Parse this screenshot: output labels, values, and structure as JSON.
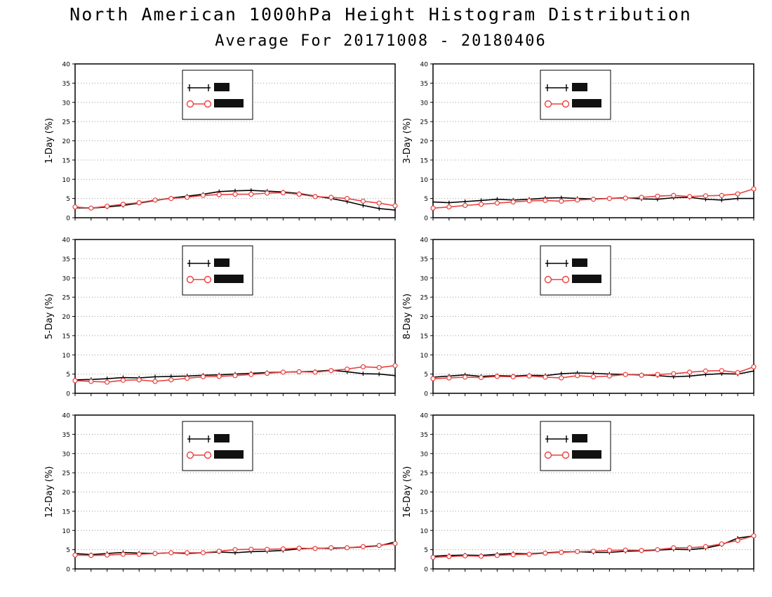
{
  "title": "North American 1000hPa Height Histogram Distribution",
  "subtitle": "Average For 20171008 - 20180406",
  "colors": {
    "series1": "#000000",
    "series2": "#e8413f",
    "grid": "#9a9a9a"
  },
  "chart_data": [
    {
      "type": "line",
      "ylabel": "1-Day (%)",
      "ylim": [
        0,
        40
      ],
      "yticks": [
        0,
        5,
        10,
        15,
        20,
        25,
        30,
        35,
        40
      ],
      "grid": true,
      "legend_position": "top-center",
      "x": [
        1,
        2,
        3,
        4,
        5,
        6,
        7,
        8,
        9,
        10,
        11,
        12,
        13,
        14,
        15,
        16,
        17,
        18,
        19,
        20,
        21
      ],
      "series": [
        {
          "values": [
            2.6,
            2.5,
            2.8,
            3.2,
            3.8,
            4.5,
            5.1,
            5.6,
            6.1,
            6.8,
            7.0,
            7.1,
            6.9,
            6.7,
            6.3,
            5.6,
            5.0,
            4.2,
            3.2,
            2.4,
            2.0
          ]
        },
        {
          "values": [
            2.8,
            2.5,
            3.0,
            3.5,
            3.9,
            4.6,
            5.0,
            5.3,
            5.8,
            6.0,
            6.1,
            6.1,
            6.4,
            6.5,
            6.1,
            5.5,
            5.3,
            5.0,
            4.3,
            3.8,
            3.1
          ]
        }
      ]
    },
    {
      "type": "line",
      "ylabel": "3-Day (%)",
      "ylim": [
        0,
        40
      ],
      "yticks": [
        0,
        5,
        10,
        15,
        20,
        25,
        30,
        35,
        40
      ],
      "grid": true,
      "legend_position": "top-center",
      "x": [
        1,
        2,
        3,
        4,
        5,
        6,
        7,
        8,
        9,
        10,
        11,
        12,
        13,
        14,
        15,
        16,
        17,
        18,
        19,
        20,
        21
      ],
      "series": [
        {
          "values": [
            4.1,
            3.9,
            4.2,
            4.5,
            4.8,
            4.6,
            4.8,
            5.1,
            5.2,
            5.0,
            4.9,
            5.0,
            5.2,
            4.9,
            4.8,
            5.2,
            5.3,
            4.8,
            4.6,
            5.0,
            5.0
          ]
        },
        {
          "values": [
            2.5,
            2.8,
            3.2,
            3.5,
            3.8,
            4.1,
            4.4,
            4.5,
            4.3,
            4.6,
            4.8,
            5.0,
            5.1,
            5.3,
            5.6,
            5.8,
            5.5,
            5.7,
            5.8,
            6.2,
            7.5
          ]
        }
      ]
    },
    {
      "type": "line",
      "ylabel": "5-Day (%)",
      "ylim": [
        0,
        40
      ],
      "yticks": [
        0,
        5,
        10,
        15,
        20,
        25,
        30,
        35,
        40
      ],
      "grid": true,
      "legend_position": "top-center",
      "x": [
        1,
        2,
        3,
        4,
        5,
        6,
        7,
        8,
        9,
        10,
        11,
        12,
        13,
        14,
        15,
        16,
        17,
        18,
        19,
        20,
        21
      ],
      "series": [
        {
          "values": [
            3.5,
            3.6,
            3.8,
            4.1,
            4.0,
            4.3,
            4.4,
            4.5,
            4.7,
            4.8,
            5.0,
            5.2,
            5.4,
            5.5,
            5.6,
            5.7,
            6.0,
            5.6,
            5.1,
            5.0,
            4.6
          ]
        },
        {
          "values": [
            3.3,
            3.1,
            2.9,
            3.4,
            3.5,
            3.1,
            3.5,
            3.9,
            4.3,
            4.4,
            4.6,
            4.9,
            5.2,
            5.5,
            5.6,
            5.5,
            5.9,
            6.3,
            6.9,
            6.7,
            7.2
          ]
        }
      ]
    },
    {
      "type": "line",
      "ylabel": "8-Day (%)",
      "ylim": [
        0,
        40
      ],
      "yticks": [
        0,
        5,
        10,
        15,
        20,
        25,
        30,
        35,
        40
      ],
      "grid": true,
      "legend_position": "top-center",
      "x": [
        1,
        2,
        3,
        4,
        5,
        6,
        7,
        8,
        9,
        10,
        11,
        12,
        13,
        14,
        15,
        16,
        17,
        18,
        19,
        20,
        21
      ],
      "series": [
        {
          "values": [
            4.2,
            4.5,
            4.8,
            4.4,
            4.6,
            4.5,
            4.7,
            4.6,
            5.1,
            5.3,
            5.2,
            5.0,
            4.9,
            4.8,
            4.6,
            4.3,
            4.5,
            4.9,
            5.1,
            5.0,
            5.8
          ]
        },
        {
          "values": [
            3.8,
            4.0,
            4.2,
            4.1,
            4.4,
            4.3,
            4.5,
            4.2,
            4.0,
            4.6,
            4.3,
            4.5,
            4.9,
            4.7,
            4.9,
            5.1,
            5.5,
            5.8,
            5.9,
            5.4,
            6.9
          ]
        }
      ]
    },
    {
      "type": "line",
      "ylabel": "12-Day (%)",
      "ylim": [
        0,
        40
      ],
      "yticks": [
        0,
        5,
        10,
        15,
        20,
        25,
        30,
        35,
        40
      ],
      "grid": true,
      "legend_position": "top-center",
      "x": [
        1,
        2,
        3,
        4,
        5,
        6,
        7,
        8,
        9,
        10,
        11,
        12,
        13,
        14,
        15,
        16,
        17,
        18,
        19,
        20,
        21
      ],
      "series": [
        {
          "values": [
            4.0,
            3.7,
            4.0,
            4.3,
            4.1,
            4.0,
            4.2,
            4.0,
            4.2,
            4.4,
            4.2,
            4.5,
            4.6,
            4.8,
            5.2,
            5.4,
            5.3,
            5.5,
            5.7,
            6.0,
            7.0
          ]
        },
        {
          "values": [
            3.6,
            3.5,
            3.6,
            3.8,
            3.8,
            4.0,
            4.2,
            4.2,
            4.2,
            4.6,
            5.0,
            5.1,
            5.1,
            5.2,
            5.4,
            5.3,
            5.5,
            5.5,
            5.8,
            6.1,
            6.6
          ]
        }
      ]
    },
    {
      "type": "line",
      "ylabel": "16-Day (%)",
      "ylim": [
        0,
        40
      ],
      "yticks": [
        0,
        5,
        10,
        15,
        20,
        25,
        30,
        35,
        40
      ],
      "grid": true,
      "legend_position": "top-center",
      "x": [
        1,
        2,
        3,
        4,
        5,
        6,
        7,
        8,
        9,
        10,
        11,
        12,
        13,
        14,
        15,
        16,
        17,
        18,
        19,
        20,
        21
      ],
      "series": [
        {
          "values": [
            3.3,
            3.5,
            3.6,
            3.5,
            3.8,
            4.0,
            3.9,
            4.2,
            4.4,
            4.5,
            4.3,
            4.3,
            4.6,
            4.7,
            4.9,
            5.1,
            5.0,
            5.4,
            6.3,
            8.0,
            8.6
          ]
        },
        {
          "values": [
            3.0,
            3.2,
            3.4,
            3.3,
            3.5,
            3.7,
            3.8,
            4.1,
            4.3,
            4.5,
            4.6,
            4.8,
            4.9,
            4.8,
            5.0,
            5.5,
            5.5,
            5.8,
            6.5,
            7.4,
            8.6
          ]
        }
      ]
    }
  ]
}
